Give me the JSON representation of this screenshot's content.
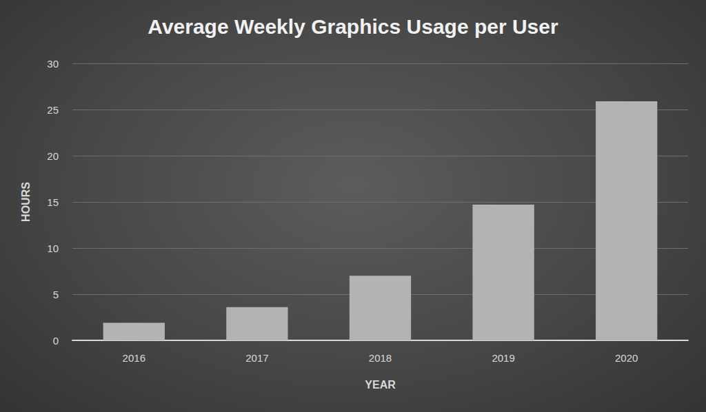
{
  "chart_data": {
    "type": "bar",
    "title": "Average Weekly Graphics Usage per User",
    "xlabel": "YEAR",
    "ylabel": "HOURS",
    "categories": [
      "2016",
      "2017",
      "2018",
      "2019",
      "2020"
    ],
    "values": [
      1.9,
      3.6,
      7.0,
      14.7,
      25.9
    ],
    "color": "#b3b3b3",
    "ylim": [
      0,
      30
    ],
    "yticks": [
      0,
      5,
      10,
      15,
      20,
      25,
      30
    ],
    "grid": true
  }
}
